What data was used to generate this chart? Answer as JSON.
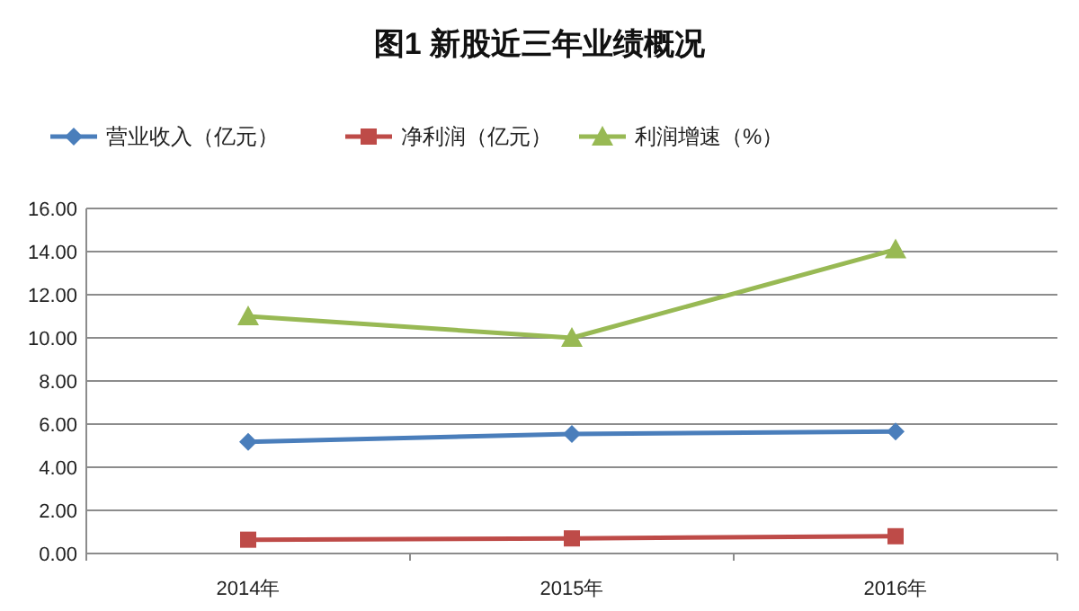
{
  "chart_data": {
    "type": "line",
    "title": "图1 新股近三年业绩概况",
    "categories": [
      "2014年",
      "2015年",
      "2016年"
    ],
    "series": [
      {
        "name": "营业收入（亿元）",
        "color": "#4a7ebb",
        "marker": "diamond",
        "values": [
          5.18,
          5.54,
          5.66
        ]
      },
      {
        "name": "净利润（亿元）",
        "color": "#be4b48",
        "marker": "square",
        "values": [
          0.64,
          0.7,
          0.8
        ]
      },
      {
        "name": "利润增速（%）",
        "color": "#98b954",
        "marker": "triangle",
        "values": [
          11.0,
          10.0,
          14.1
        ]
      }
    ],
    "ylim": [
      0,
      16
    ],
    "yticks": [
      {
        "value": 0,
        "label": "0.00"
      },
      {
        "value": 2,
        "label": "2.00"
      },
      {
        "value": 4,
        "label": "4.00"
      },
      {
        "value": 6,
        "label": "6.00"
      },
      {
        "value": 8,
        "label": "8.00"
      },
      {
        "value": 10,
        "label": "10.00"
      },
      {
        "value": 12,
        "label": "12.00"
      },
      {
        "value": 14,
        "label": "14.00"
      },
      {
        "value": 16,
        "label": "16.00"
      }
    ],
    "grid": "y",
    "legend": "top",
    "line_style": "solid"
  }
}
